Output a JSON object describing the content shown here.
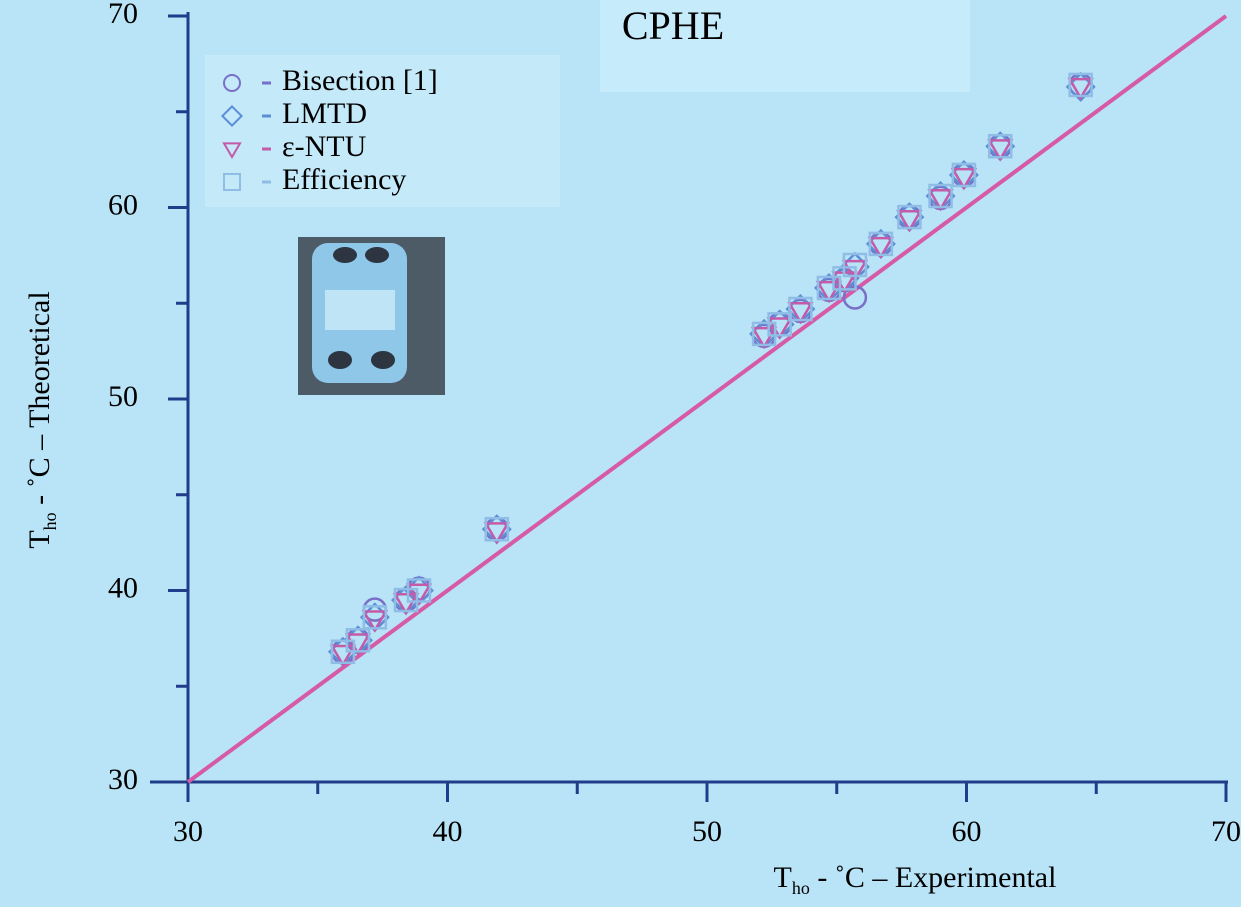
{
  "chart_data": {
    "type": "scatter",
    "title": "CPHE",
    "xlabel": {
      "main": "T",
      "sub": "ho",
      "rest": " - ˚C – Experimental"
    },
    "ylabel": {
      "main": "T",
      "sub": "ho",
      "rest": " - ˚C – Theoretical"
    },
    "xlim": [
      30,
      70
    ],
    "ylim": [
      30,
      70
    ],
    "xticks": [
      30,
      40,
      50,
      60,
      70
    ],
    "yticks": [
      30,
      40,
      50,
      60,
      70
    ],
    "xticks_minor": [
      35,
      45,
      55,
      65
    ],
    "yticks_minor": [
      35,
      45,
      55,
      65
    ],
    "x": [
      35.97,
      36.55,
      37.2,
      38.4,
      38.9,
      41.9,
      52.2,
      52.8,
      53.6,
      54.7,
      55.3,
      55.7,
      56.7,
      57.8,
      59.0,
      59.9,
      61.3,
      64.4
    ],
    "series": [
      {
        "name": "Bisection [1]",
        "marker": "circle",
        "color": "#7a6fc8",
        "values": [
          36.8,
          37.4,
          39.0,
          39.5,
          40.1,
          43.2,
          53.3,
          53.9,
          54.6,
          55.7,
          56.2,
          55.3,
          58.1,
          59.5,
          60.5,
          61.7,
          63.2,
          66.4
        ]
      },
      {
        "name": "LMTD",
        "marker": "diamond",
        "color": "#5b8ed6",
        "values": [
          36.8,
          37.4,
          38.6,
          39.5,
          40.0,
          43.2,
          53.4,
          53.9,
          54.7,
          55.8,
          56.3,
          56.9,
          58.1,
          59.5,
          60.6,
          61.7,
          63.2,
          66.3
        ]
      },
      {
        "name": "ε-NTU",
        "marker": "triangle",
        "color": "#c45aa8",
        "values": [
          36.7,
          37.3,
          38.5,
          39.4,
          39.9,
          43.1,
          53.3,
          53.8,
          54.6,
          55.7,
          56.2,
          56.8,
          58.0,
          59.4,
          60.5,
          61.6,
          63.1,
          66.3
        ]
      },
      {
        "name": "Efficiency",
        "marker": "square",
        "color": "#8fbde6",
        "values": [
          36.8,
          37.4,
          38.6,
          39.5,
          40.0,
          43.2,
          53.4,
          53.9,
          54.7,
          55.8,
          56.3,
          57.0,
          58.1,
          59.5,
          60.6,
          61.7,
          63.2,
          66.4
        ]
      }
    ],
    "reference_line": {
      "x": [
        30,
        70
      ],
      "values": [
        30,
        70
      ],
      "color": "#d65aa6"
    }
  }
}
